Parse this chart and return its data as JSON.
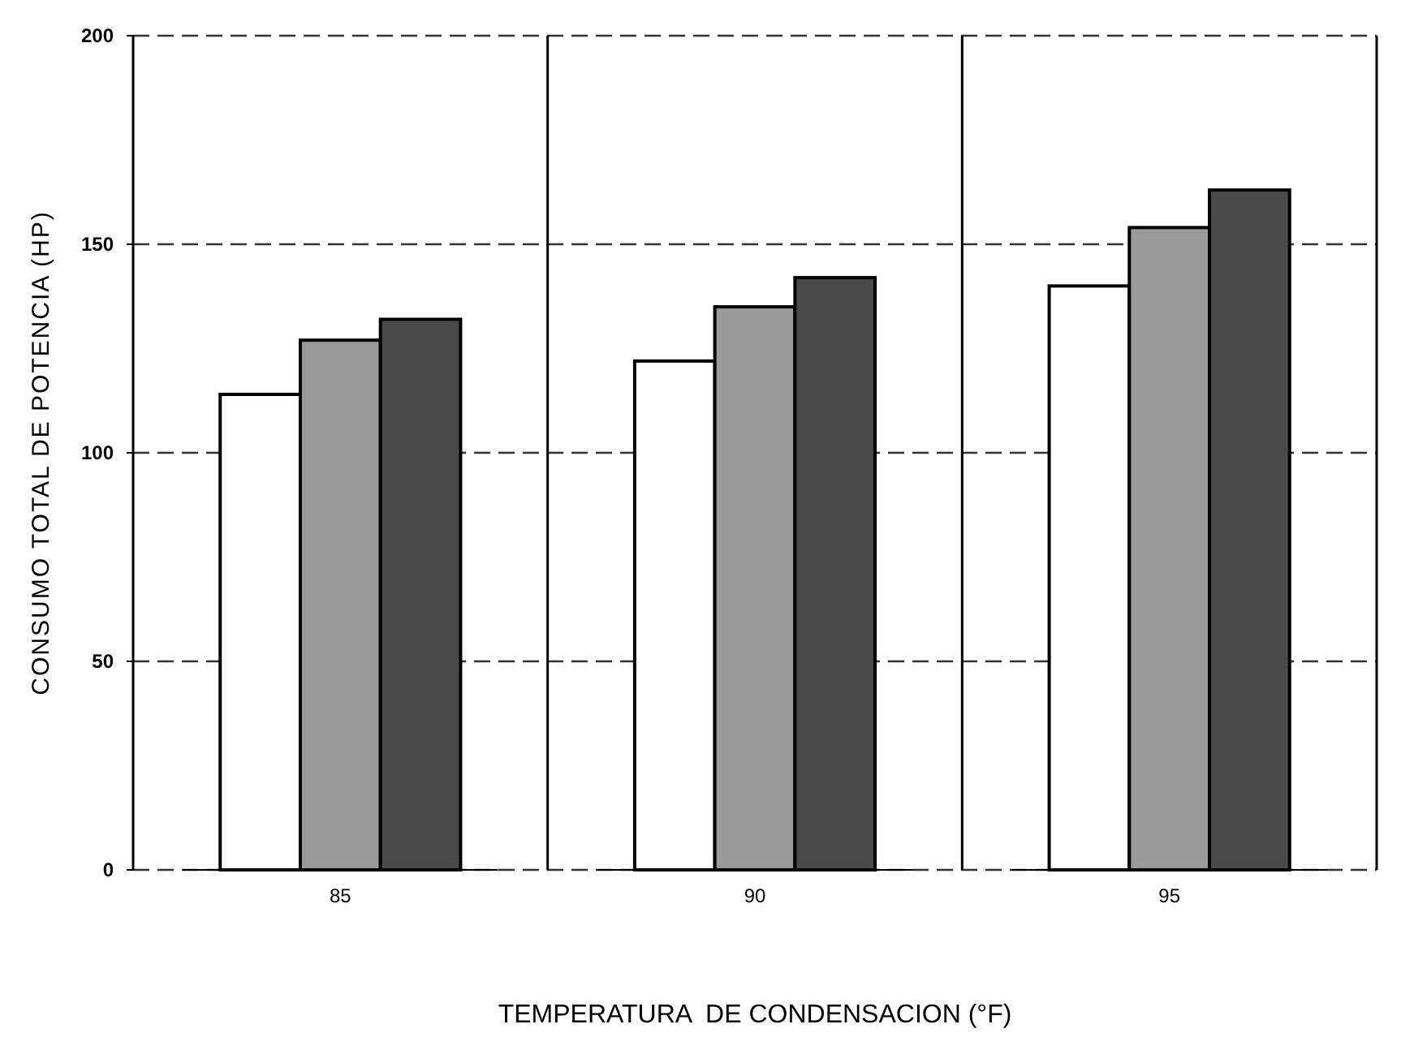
{
  "chart_data": {
    "type": "bar",
    "xlabel": "TEMPERATURA  DE CONDENSACION (°F)",
    "ylabel": "CONSUMO TOTAL DE POTENCIA (HP)",
    "categories": [
      "85",
      "90",
      "95"
    ],
    "series": [
      {
        "color": "#ffffff",
        "values": [
          114,
          122,
          140
        ]
      },
      {
        "color": "#9a9a9a",
        "values": [
          127,
          135,
          154
        ]
      },
      {
        "color": "#4a4a4a",
        "values": [
          132,
          142,
          163
        ]
      }
    ],
    "ylim": [
      0,
      200
    ],
    "yticks": [
      0,
      50,
      100,
      150,
      200
    ],
    "grid": "y"
  }
}
